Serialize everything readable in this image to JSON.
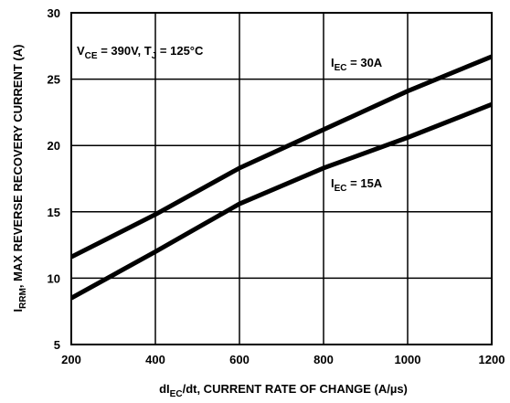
{
  "chart_data": {
    "type": "line",
    "xlabel": "dI_EC/dt, CURRENT RATE OF CHANGE (A/µs)",
    "ylabel": "I_RRM, MAX REVERSE RECOVERY CURRENT (A)",
    "xlim": [
      200,
      1200
    ],
    "ylim": [
      5,
      30
    ],
    "x_ticks": [
      "200",
      "400",
      "600",
      "800",
      "1000",
      "1200"
    ],
    "y_ticks": [
      "5",
      "10",
      "15",
      "20",
      "25",
      "30"
    ],
    "grid": true,
    "conditions": "V_CE = 390V, T_J = 125°C",
    "series": [
      {
        "name": "I_EC = 30A",
        "x": [
          200,
          400,
          600,
          800,
          1000,
          1200
        ],
        "y": [
          11.6,
          14.8,
          18.3,
          21.2,
          24.1,
          26.7
        ]
      },
      {
        "name": "I_EC = 15A",
        "x": [
          200,
          400,
          600,
          800,
          1000,
          1200
        ],
        "y": [
          8.5,
          12.0,
          15.6,
          18.3,
          20.6,
          23.1
        ]
      }
    ]
  }
}
